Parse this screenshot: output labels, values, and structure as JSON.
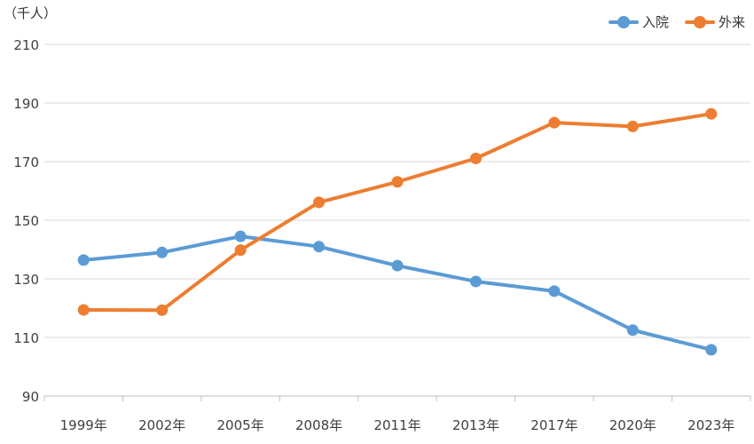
{
  "chart_data": {
    "type": "line",
    "unit_label": "（千人）",
    "categories": [
      "1999年",
      "2002年",
      "2005年",
      "2008年",
      "2011年",
      "2013年",
      "2017年",
      "2020年",
      "2023年"
    ],
    "series": [
      {
        "name": "入院",
        "color": "#5b9bd5",
        "values": [
          136.4,
          139.0,
          144.5,
          141.0,
          134.5,
          129.1,
          125.8,
          112.5,
          105.8
        ]
      },
      {
        "name": "外来",
        "color": "#ed7d31",
        "values": [
          119.4,
          119.3,
          139.8,
          156.1,
          163.1,
          171.1,
          183.3,
          182.0,
          186.3
        ]
      }
    ],
    "ylim": [
      90,
      210
    ],
    "yticks": [
      90,
      110,
      130,
      150,
      170,
      190,
      210
    ],
    "grid": true,
    "legend": "top-right"
  }
}
